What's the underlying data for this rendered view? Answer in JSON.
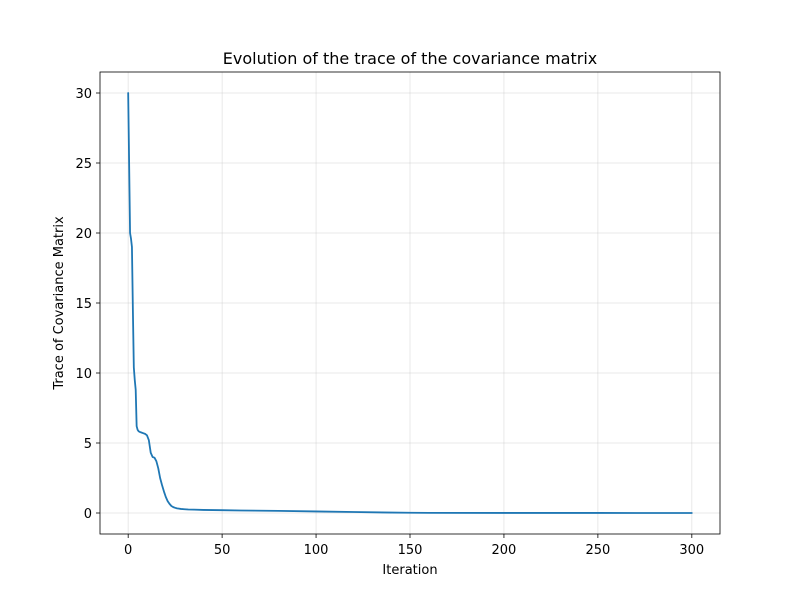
{
  "chart_data": {
    "type": "line",
    "title": "Evolution of the trace of the covariance matrix",
    "xlabel": "Iteration",
    "ylabel": "Trace of Covariance Matrix",
    "xlim": [
      -15,
      315
    ],
    "ylim": [
      -1.5,
      31.5
    ],
    "xticks": [
      0,
      50,
      100,
      150,
      200,
      250,
      300
    ],
    "yticks": [
      0,
      5,
      10,
      15,
      20,
      25,
      30
    ],
    "grid": true,
    "series": [
      {
        "color": "#1f77b4",
        "x": [
          0,
          0.5,
          1,
          1.5,
          2,
          2.5,
          3,
          3.5,
          4,
          4.5,
          5,
          5.5,
          6,
          7,
          8,
          9,
          10,
          11,
          12,
          13,
          14,
          15,
          16,
          17,
          18,
          19,
          20,
          21,
          22,
          23,
          24,
          25,
          26,
          27,
          28,
          30,
          32,
          35,
          40,
          50,
          60,
          80,
          100,
          120,
          140,
          150,
          160,
          200,
          250,
          300
        ],
        "y": [
          30,
          25,
          20,
          19.6,
          19,
          14.5,
          10.4,
          9.5,
          8.8,
          6.2,
          5.95,
          5.85,
          5.8,
          5.75,
          5.7,
          5.65,
          5.55,
          5.2,
          4.3,
          4.0,
          3.95,
          3.7,
          3.2,
          2.5,
          2.0,
          1.55,
          1.15,
          0.85,
          0.65,
          0.5,
          0.42,
          0.37,
          0.33,
          0.31,
          0.29,
          0.27,
          0.25,
          0.24,
          0.22,
          0.2,
          0.18,
          0.15,
          0.11,
          0.07,
          0.03,
          0.02,
          0.01,
          0.005,
          0.003,
          0.002
        ]
      }
    ]
  }
}
